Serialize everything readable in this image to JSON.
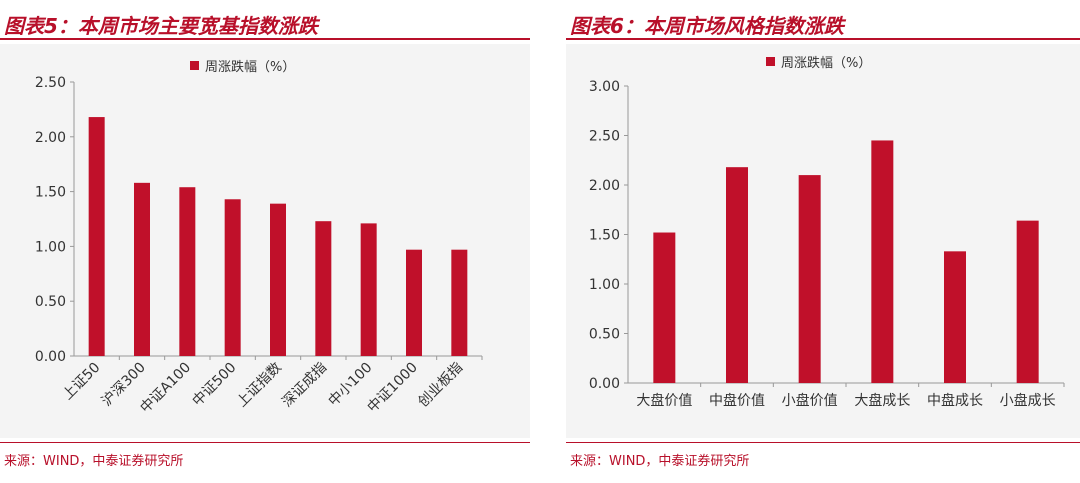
{
  "left": {
    "title": "图表5：本周市场主要宽基指数涨跌",
    "source": "来源：WIND，中泰证券研究所",
    "legend": "周涨跌幅（%）"
  },
  "right": {
    "title": "图表6：本周市场风格指数涨跌",
    "source": "来源：WIND，中泰证券研究所",
    "legend": "周涨跌幅（%）"
  },
  "colors": {
    "accent": "#b8102a",
    "bar": "#c0102a"
  },
  "chart_data": [
    {
      "type": "bar",
      "title": "图表5：本周市场主要宽基指数涨跌",
      "categories": [
        "上证50",
        "沪深300",
        "中证A100",
        "中证500",
        "上证指数",
        "深证成指",
        "中小100",
        "中证1000",
        "创业板指"
      ],
      "series": [
        {
          "name": "周涨跌幅（%）",
          "values": [
            2.18,
            1.58,
            1.54,
            1.43,
            1.39,
            1.23,
            1.21,
            0.97,
            0.97
          ]
        }
      ],
      "ylim": [
        0,
        2.5
      ],
      "yticks": [
        "0.00",
        "0.50",
        "1.00",
        "1.50",
        "2.00",
        "2.50"
      ],
      "legend_position": "top-center",
      "grid": false
    },
    {
      "type": "bar",
      "title": "图表6：本周市场风格指数涨跌",
      "categories": [
        "大盘价值",
        "中盘价值",
        "小盘价值",
        "大盘成长",
        "中盘成长",
        "小盘成长"
      ],
      "series": [
        {
          "name": "周涨跌幅（%）",
          "values": [
            1.52,
            2.18,
            2.1,
            2.45,
            1.33,
            1.64
          ]
        }
      ],
      "ylim": [
        0,
        3
      ],
      "yticks": [
        "0.00",
        "0.50",
        "1.00",
        "1.50",
        "2.00",
        "2.50",
        "3.00"
      ],
      "legend_position": "top-center",
      "grid": false
    }
  ]
}
